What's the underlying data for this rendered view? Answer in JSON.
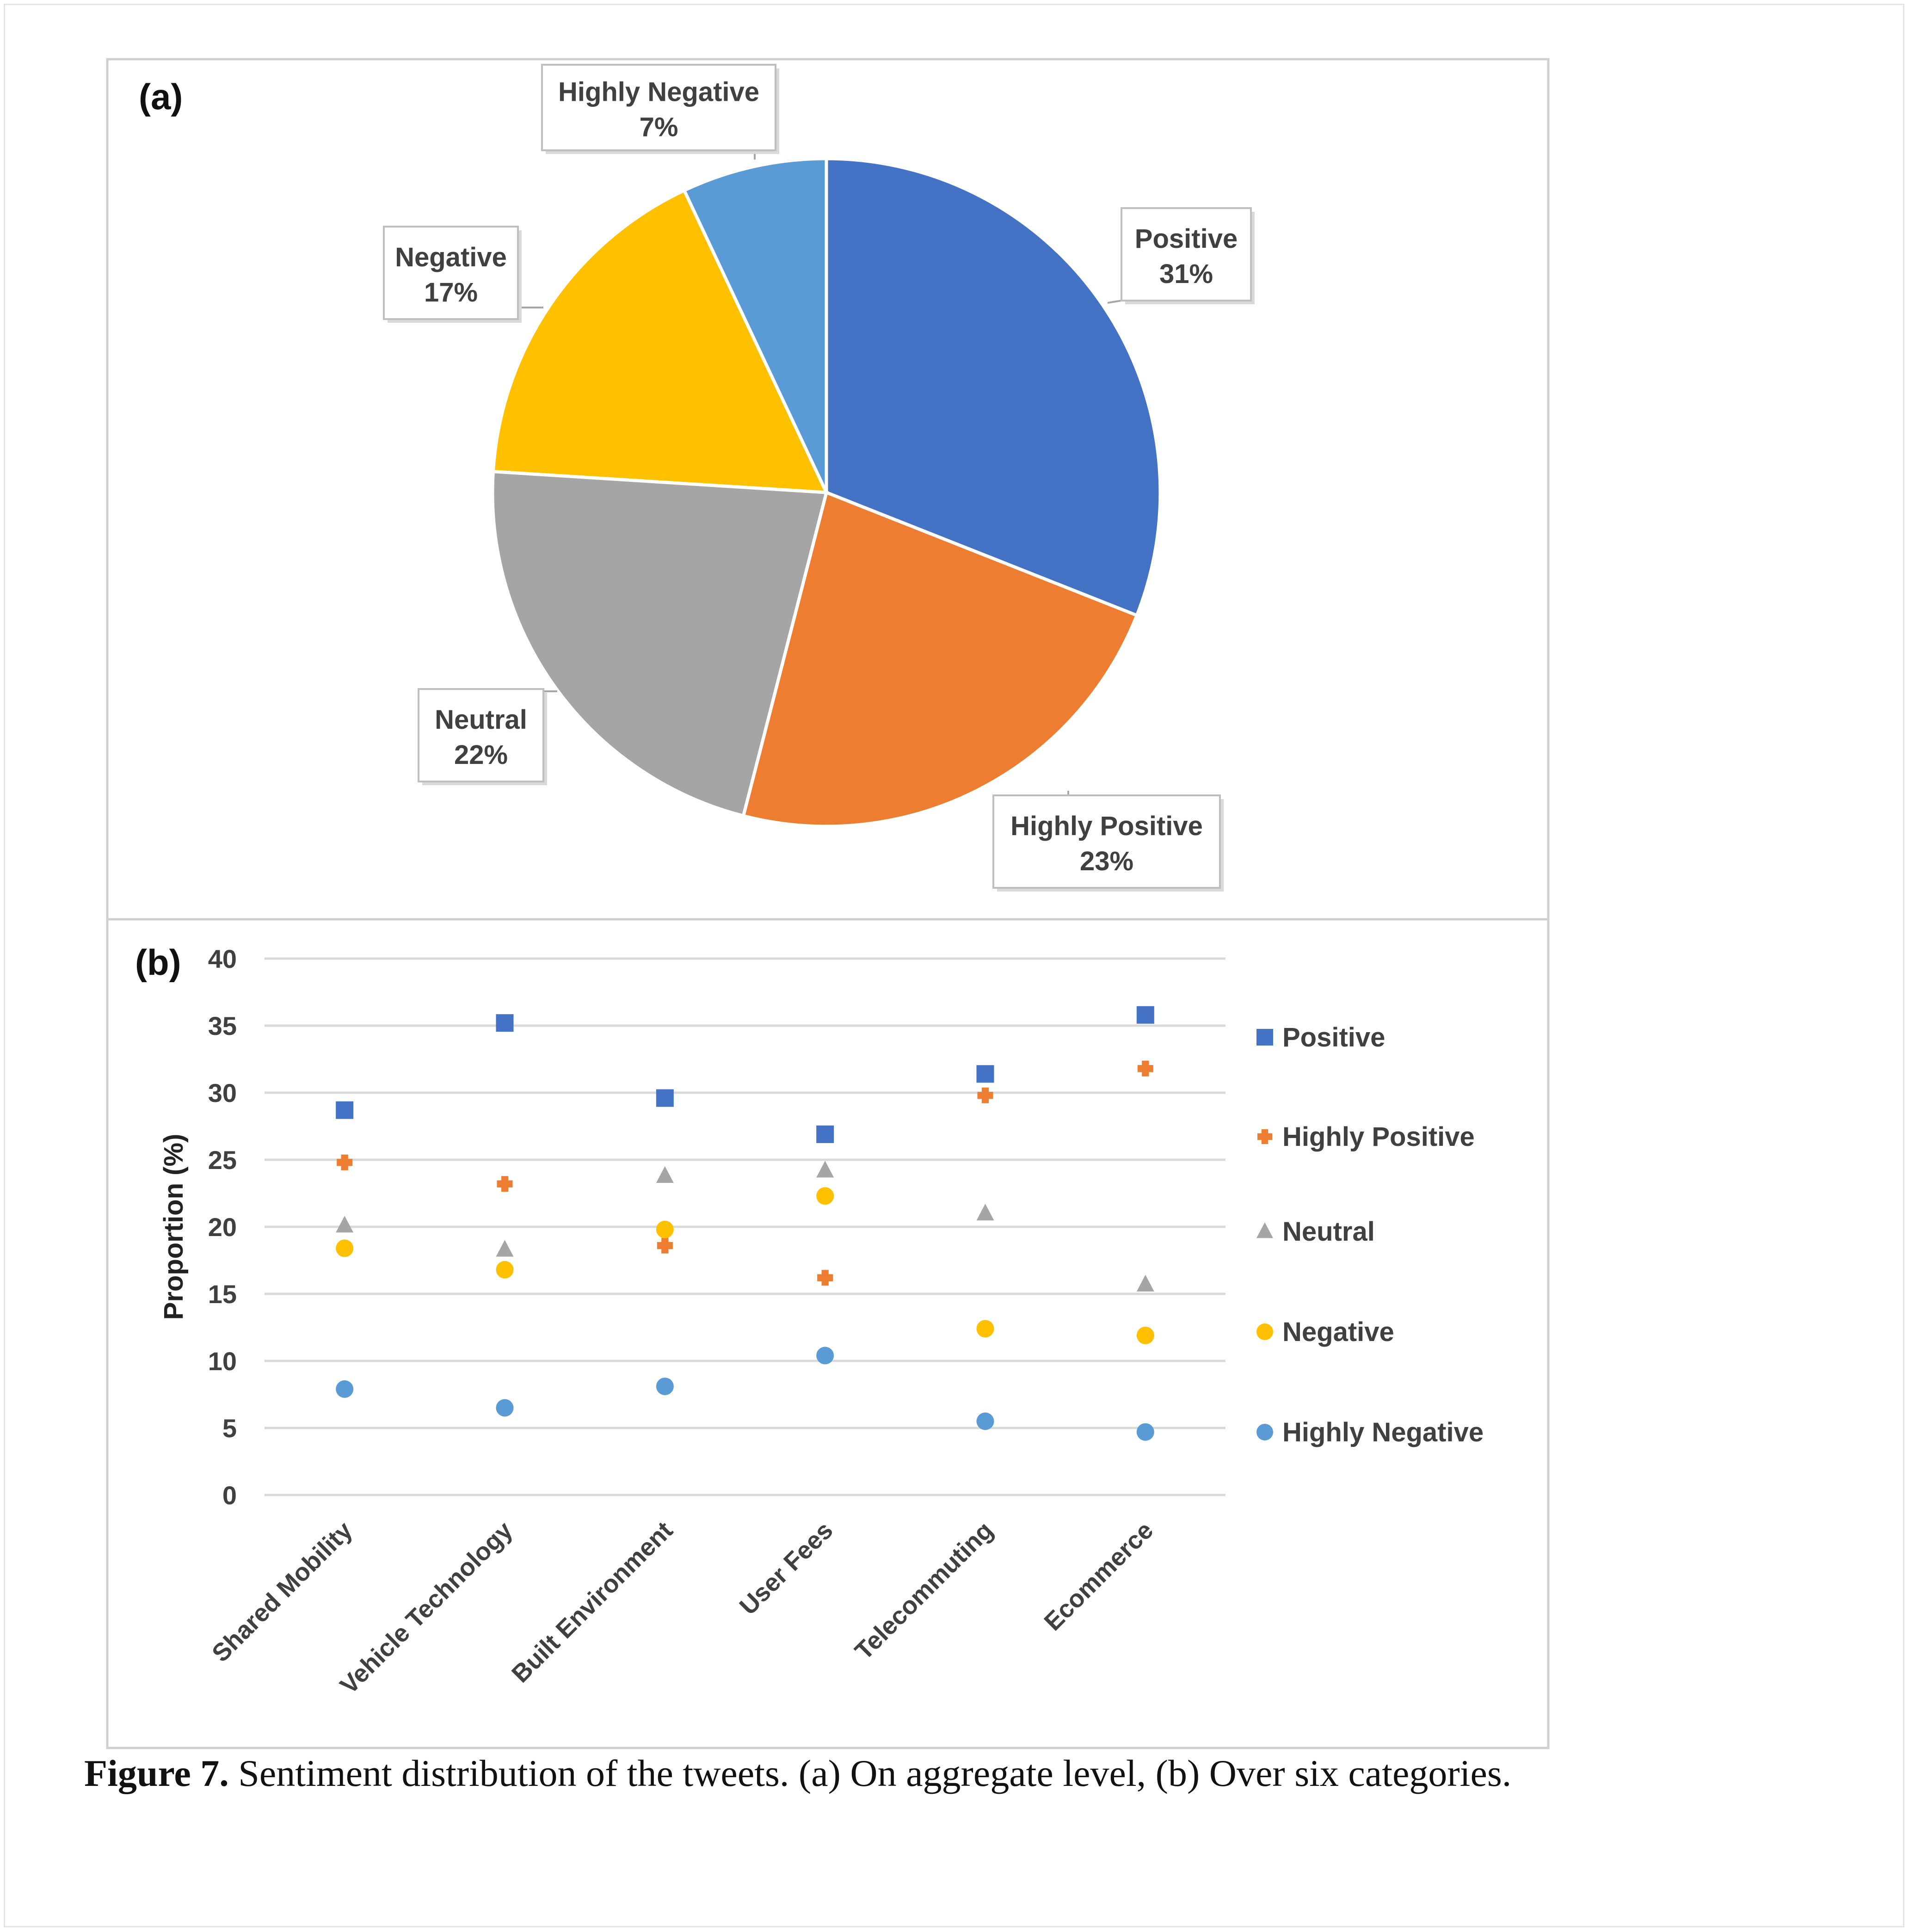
{
  "colors": {
    "positive": "#4472C4",
    "highly_positive": "#ED7D31",
    "neutral": "#A5A5A5",
    "negative": "#FFC000",
    "highly_negative": "#5B9BD5",
    "gridline": "#d9d9d9",
    "panel_border": "#d0d0d0"
  },
  "panel_a": {
    "label": "(a)"
  },
  "panel_b": {
    "label": "(b)"
  },
  "caption": {
    "label": "Figure 7.",
    "text": "Sentiment distribution of the tweets. (a) On aggregate level, (b) Over six categories."
  },
  "chart_data": [
    {
      "type": "pie",
      "slices": [
        {
          "name": "Positive",
          "value": 31,
          "label": "31%",
          "color": "#4472C4"
        },
        {
          "name": "Highly Positive",
          "value": 23,
          "label": "23%",
          "color": "#ED7D31"
        },
        {
          "name": "Neutral",
          "value": 22,
          "label": "22%",
          "color": "#A5A5A5"
        },
        {
          "name": "Negative",
          "value": 17,
          "label": "17%",
          "color": "#FFC000"
        },
        {
          "name": "Highly Negative",
          "value": 7,
          "label": "7%",
          "color": "#5B9BD5"
        }
      ]
    },
    {
      "type": "scatter",
      "categories": [
        "Shared Mobility",
        "Vehicle Technology",
        "Built Environment",
        "User Fees",
        "Telecommuting",
        "Ecommerce"
      ],
      "ylabel": "Proportion (%)",
      "ylim": [
        0,
        40
      ],
      "yticks": [
        0,
        5,
        10,
        15,
        20,
        25,
        30,
        35,
        40
      ],
      "grid": true,
      "legend_position": "right",
      "series": [
        {
          "name": "Positive",
          "marker": "square",
          "color": "#4472C4",
          "values": [
            28.7,
            35.2,
            29.6,
            26.9,
            31.4,
            35.8
          ]
        },
        {
          "name": "Highly Positive",
          "marker": "plus",
          "color": "#ED7D31",
          "values": [
            24.8,
            23.2,
            18.6,
            16.2,
            29.8,
            31.8
          ]
        },
        {
          "name": "Neutral",
          "marker": "triangle",
          "color": "#A5A5A5",
          "values": [
            20.1,
            18.3,
            23.8,
            24.2,
            21.0,
            15.7
          ]
        },
        {
          "name": "Negative",
          "marker": "circle",
          "color": "#FFC000",
          "values": [
            18.4,
            16.8,
            19.8,
            22.3,
            12.4,
            11.9
          ]
        },
        {
          "name": "Highly Negative",
          "marker": "circle",
          "color": "#5B9BD5",
          "values": [
            7.9,
            6.5,
            8.1,
            10.4,
            5.5,
            4.7
          ]
        }
      ]
    }
  ]
}
